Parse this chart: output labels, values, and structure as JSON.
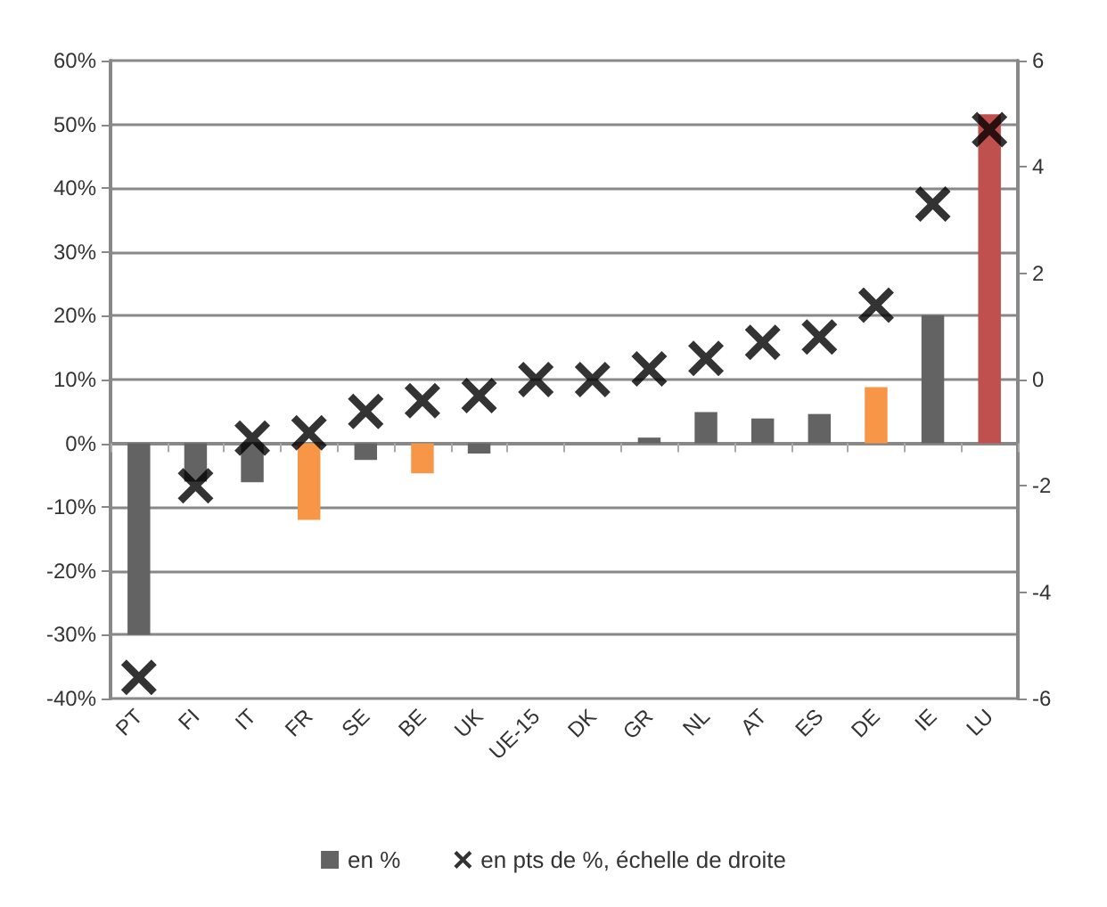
{
  "chart_data": {
    "type": "bar",
    "categories": [
      "PT",
      "FI",
      "IT",
      "FR",
      "SE",
      "BE",
      "UK",
      "UE-15",
      "DK",
      "GR",
      "NL",
      "AT",
      "ES",
      "DE",
      "IE",
      "LU"
    ],
    "series": [
      {
        "name": "en %",
        "color": "#636363",
        "colors": [
          "#636363",
          "#636363",
          "#636363",
          "#f79646",
          "#636363",
          "#f79646",
          "#636363",
          "#636363",
          "#636363",
          "#636363",
          "#636363",
          "#636363",
          "#636363",
          "#f79646",
          "#636363",
          "#c0504d"
        ],
        "values": [
          -30,
          -6,
          -6.1,
          -12,
          -2.6,
          -4.7,
          -1.6,
          0,
          0,
          0.9,
          4.9,
          3.9,
          4.6,
          8.8,
          20.1,
          51.6
        ]
      },
      {
        "name": "en pts de %, échelle de droite",
        "type": "scatter",
        "axis": "y2",
        "color": "#000000",
        "marker": "cross",
        "values": [
          -5.6,
          -2.0,
          -1.1,
          -1.0,
          -0.6,
          -0.4,
          -0.3,
          0,
          0,
          0.2,
          0.4,
          0.7,
          0.8,
          1.4,
          3.3,
          4.7
        ]
      }
    ],
    "ylim": [
      -40,
      60
    ],
    "yticks": [
      {
        "value": -40,
        "label": "-40%"
      },
      {
        "value": -30,
        "label": "-30%"
      },
      {
        "value": -20,
        "label": "-20%"
      },
      {
        "value": -10,
        "label": "-10%"
      },
      {
        "value": 0,
        "label": "0%"
      },
      {
        "value": 10,
        "label": "10%"
      },
      {
        "value": 20,
        "label": "20%"
      },
      {
        "value": 30,
        "label": "30%"
      },
      {
        "value": 40,
        "label": "40%"
      },
      {
        "value": 50,
        "label": "50%"
      },
      {
        "value": 60,
        "label": "60%"
      }
    ],
    "y2lim": [
      -6,
      6
    ],
    "y2ticks": [
      -6,
      -4,
      -2,
      0,
      2,
      4,
      6
    ],
    "grid": "y",
    "legend": "bottom"
  }
}
